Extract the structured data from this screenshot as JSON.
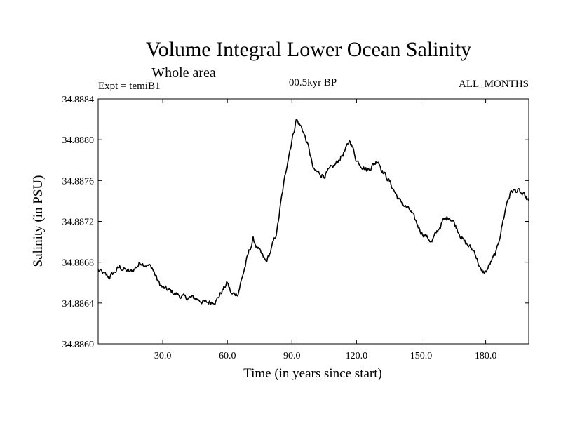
{
  "chart_data": {
    "type": "line",
    "title": "Volume Integral Lower Ocean Salinity",
    "subtitle": "Whole area",
    "experiment": "Expt = temiB1",
    "period": "00.5kyr BP",
    "months": "ALL_MONTHS",
    "xlabel": "Time (in years since start)",
    "ylabel": "Salinity (in PSU)",
    "xlim": [
      0,
      200
    ],
    "ylim": [
      34.886,
      34.8884
    ],
    "xticks": [
      30,
      60,
      90,
      120,
      150,
      180
    ],
    "xtick_labels": [
      "30.0",
      "60.0",
      "90.0",
      "120.0",
      "150.0",
      "180.0"
    ],
    "yticks": [
      34.886,
      34.8864,
      34.8868,
      34.8872,
      34.8876,
      34.888,
      34.8884
    ],
    "ytick_labels": [
      "34.8860",
      "34.8864",
      "34.8868",
      "34.8872",
      "34.8876",
      "34.8880",
      "34.8884"
    ],
    "series": [
      {
        "name": "salinity",
        "x": [
          0,
          5,
          10,
          15,
          20,
          25,
          28,
          30,
          35,
          40,
          45,
          50,
          55,
          60,
          62,
          65,
          70,
          72,
          75,
          78,
          80,
          83,
          85,
          88,
          90,
          92,
          95,
          98,
          100,
          105,
          110,
          115,
          117,
          120,
          125,
          130,
          132,
          135,
          140,
          145,
          150,
          155,
          160,
          163,
          165,
          170,
          175,
          178,
          180,
          185,
          190,
          192,
          195,
          200
        ],
        "y": [
          34.88672,
          34.88665,
          34.88675,
          34.8867,
          34.8868,
          34.88675,
          34.8866,
          34.88655,
          34.8865,
          34.88645,
          34.88645,
          34.8864,
          34.88643,
          34.8866,
          34.88648,
          34.8865,
          34.8869,
          34.88702,
          34.8869,
          34.8868,
          34.8869,
          34.8871,
          34.8874,
          34.8878,
          34.888,
          34.8882,
          34.8881,
          34.8879,
          34.8877,
          34.88765,
          34.88775,
          34.8879,
          34.888,
          34.8878,
          34.8877,
          34.8878,
          34.8877,
          34.8876,
          34.8874,
          34.8873,
          34.8871,
          34.887,
          34.8872,
          34.88725,
          34.8872,
          34.887,
          34.8869,
          34.8867,
          34.8867,
          34.8869,
          34.8874,
          34.8875,
          34.8875,
          34.8874
        ]
      }
    ]
  }
}
